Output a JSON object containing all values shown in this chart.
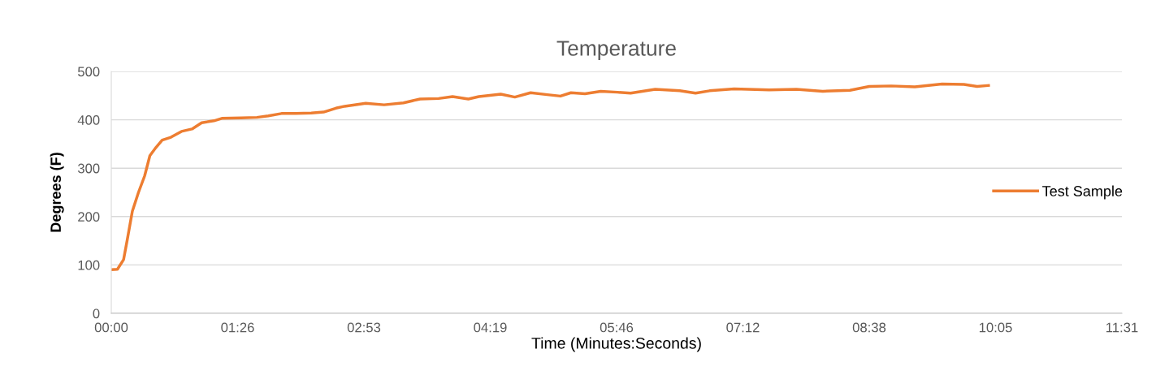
{
  "chart_data": {
    "type": "line",
    "title": "Temperature",
    "xlabel": "Time (Minutes:Seconds)",
    "ylabel": "Degrees (F)",
    "xlim": [
      0,
      11.52
    ],
    "xticks": [
      {
        "value": 0,
        "label": "00:00"
      },
      {
        "value": 1.44,
        "label": "01:26"
      },
      {
        "value": 2.88,
        "label": "02:53"
      },
      {
        "value": 4.32,
        "label": "04:19"
      },
      {
        "value": 5.76,
        "label": "05:46"
      },
      {
        "value": 7.2,
        "label": "07:12"
      },
      {
        "value": 8.64,
        "label": "08:38"
      },
      {
        "value": 10.08,
        "label": "10:05"
      },
      {
        "value": 11.52,
        "label": "11:31"
      }
    ],
    "ylim": [
      0,
      500
    ],
    "yticks": [
      0,
      100,
      200,
      300,
      400,
      500
    ],
    "grid": "y",
    "legend": "right",
    "marker": "none",
    "line_style": "solid",
    "series": [
      {
        "name": "Test Sample",
        "color": "#ed7d31",
        "x": [
          0,
          0.07,
          0.14,
          0.18,
          0.24,
          0.31,
          0.38,
          0.44,
          0.51,
          0.58,
          0.68,
          0.8,
          0.92,
          1.03,
          1.17,
          1.26,
          1.48,
          1.66,
          1.79,
          1.94,
          2.1,
          2.28,
          2.42,
          2.56,
          2.66,
          2.9,
          3.11,
          3.33,
          3.52,
          3.73,
          3.89,
          4.07,
          4.19,
          4.44,
          4.6,
          4.78,
          4.97,
          5.12,
          5.24,
          5.4,
          5.58,
          5.77,
          5.92,
          6.2,
          6.48,
          6.66,
          6.82,
          7.1,
          7.5,
          7.81,
          8.11,
          8.42,
          8.64,
          8.89,
          9.16,
          9.47,
          9.72,
          9.87,
          10.0
        ],
        "values": [
          90,
          91,
          111,
          150,
          211,
          250,
          284,
          326,
          343,
          358,
          364,
          376,
          381,
          394,
          398,
          403,
          404,
          405,
          408,
          413,
          413,
          414,
          416,
          424,
          428,
          434,
          431,
          435,
          443,
          444,
          448,
          443,
          448,
          453,
          447,
          456,
          452,
          449,
          456,
          454,
          459,
          457,
          455,
          463,
          460,
          455,
          460,
          464,
          462,
          463,
          459,
          461,
          469,
          470,
          468,
          474,
          473,
          469,
          471
        ]
      }
    ]
  }
}
